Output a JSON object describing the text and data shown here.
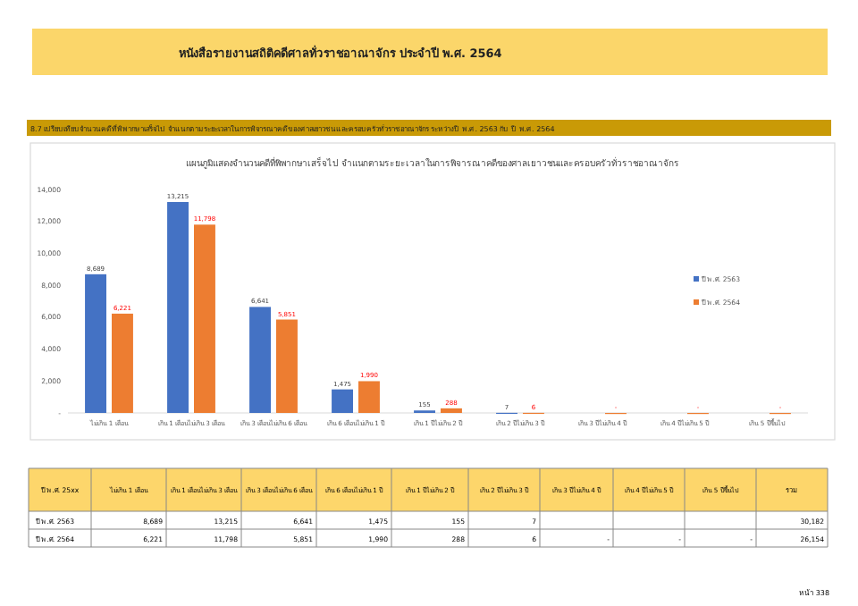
{
  "chart_data": {
    "type": "bar",
    "title": "แผนภูมิแสดงจำนวนคดีที่พิพากษาเสร็จไป จำแนกตามระยะเวลาในการพิจารณาคดีของศาลเยาวชนและครอบครัวทั่วราชอาณาจักร",
    "categories": [
      "ไม่เกิน 1 เดือน",
      "เกิน 1 เดือนไม่เกิน 3 เดือน",
      "เกิน 3 เดือนไม่เกิน 6 เดือน",
      "เกิน 6 เดือนไม่เกิน 1 ปี",
      "เกิน 1 ปีไม่เกิน 2 ปี",
      "เกิน 2 ปีไม่เกิน 3 ปี",
      "เกิน 3 ปีไม่เกิน 4 ปี",
      "เกิน 4 ปีไม่เกิน 5 ปี",
      "เกิน 5 ปีขึ้นไป"
    ],
    "series": [
      {
        "name": "ปี พ.ศ. 2563",
        "color": "#4472c4",
        "values": [
          8689,
          13215,
          6641,
          1475,
          155,
          7,
          null,
          null,
          null
        ],
        "value_labels": [
          "8,689",
          "13,215",
          "6,641",
          "1,475",
          "155",
          "7",
          null,
          null,
          null
        ]
      },
      {
        "name": "ปี พ.ศ. 2564",
        "color": "#ed7d31",
        "values": [
          6221,
          11798,
          5851,
          1990,
          288,
          6,
          0,
          0,
          0
        ],
        "value_labels": [
          "6,221",
          "11,798",
          "5,851",
          "1,990",
          "288",
          "6",
          "-",
          "-",
          "-"
        ]
      }
    ],
    "ylim": [
      0,
      14000
    ],
    "yticks": [
      {
        "value": 0,
        "label": "-"
      },
      {
        "value": 2000,
        "label": "2,000"
      },
      {
        "value": 4000,
        "label": "4,000"
      },
      {
        "value": 6000,
        "label": "6,000"
      },
      {
        "value": 8000,
        "label": "8,000"
      },
      {
        "value": 10000,
        "label": "10,000"
      },
      {
        "value": 12000,
        "label": "12,000"
      },
      {
        "value": 14000,
        "label": "14,000"
      }
    ],
    "grid": false,
    "legend": "right",
    "annotations": [
      "หนังสือรายงานสถิติคดีศาลทั่วราชอาณาจักร ประจำปี พ.ศ. 2564",
      "8.7 เปรียบเทียบจำนวนคดีที่พิพากษาเสร็จไป จำแนกตามระยะเวลาในการพิจารณาคดีของศาลเยาวชนและครอบครัวทั่วราชอาณาจักร ระหว่างปี พ.ศ. 2563 กับ ปี พ.ศ. 2564",
      "ปี พ.ศ. 25xx",
      "รวม",
      "30,182",
      "26,154",
      "หน้า 338"
    ]
  }
}
